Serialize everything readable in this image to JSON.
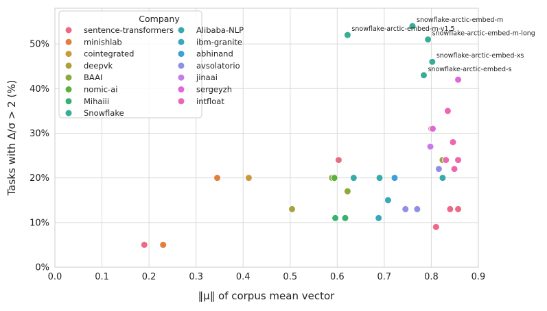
{
  "chart_data": {
    "type": "scatter",
    "title": "",
    "xlabel": "‖μ‖ of corpus mean vector",
    "ylabel": "Tasks with Δ/σ > 2 (%)",
    "xlim": [
      0.0,
      0.9
    ],
    "ylim": [
      0,
      58
    ],
    "xticks": [
      0.0,
      0.1,
      0.2,
      0.3,
      0.4,
      0.5,
      0.6,
      0.7,
      0.8,
      0.9
    ],
    "xtick_labels": [
      "0.0",
      "0.1",
      "0.2",
      "0.3",
      "0.4",
      "0.5",
      "0.6",
      "0.7",
      "0.8",
      "0.9"
    ],
    "yticks": [
      0,
      10,
      20,
      30,
      40,
      50
    ],
    "ytick_labels": [
      "0%",
      "10%",
      "20%",
      "30%",
      "40%",
      "50%"
    ],
    "grid": true,
    "legend": {
      "title": "Company",
      "placement": "top-left",
      "columns": 2
    },
    "series": [
      {
        "name": "sentence-transformers",
        "color": "#ec6a86",
        "points": [
          [
            0.19,
            5
          ],
          [
            0.603,
            24
          ],
          [
            0.84,
            13
          ],
          [
            0.857,
            13
          ],
          [
            0.81,
            9
          ]
        ]
      },
      {
        "name": "minishlab",
        "color": "#e67e3b",
        "points": [
          [
            0.23,
            5
          ],
          [
            0.345,
            20
          ]
        ]
      },
      {
        "name": "cointegrated",
        "color": "#c99a3c",
        "points": [
          [
            0.412,
            20
          ],
          [
            0.8,
            31
          ]
        ]
      },
      {
        "name": "deepvk",
        "color": "#a9a23a",
        "points": [
          [
            0.504,
            13
          ]
        ]
      },
      {
        "name": "BAAI",
        "color": "#8fa83a",
        "points": [
          [
            0.589,
            20
          ],
          [
            0.622,
            17
          ],
          [
            0.824,
            24
          ]
        ]
      },
      {
        "name": "nomic-ai",
        "color": "#5bb13a",
        "points": [
          [
            0.594,
            20
          ]
        ]
      },
      {
        "name": "Mihaiii",
        "color": "#38b270",
        "points": [
          [
            0.596,
            11
          ],
          [
            0.617,
            11
          ]
        ]
      },
      {
        "name": "Snowflake",
        "color": "#36ae96",
        "points": [
          [
            0.622,
            52
          ],
          [
            0.76,
            54
          ],
          [
            0.793,
            51
          ],
          [
            0.802,
            46
          ],
          [
            0.784,
            43
          ]
        ]
      },
      {
        "name": "Alibaba-NLP",
        "color": "#37aaaa",
        "points": [
          [
            0.635,
            20
          ],
          [
            0.69,
            20
          ],
          [
            0.824,
            20
          ]
        ]
      },
      {
        "name": "ibm-granite",
        "color": "#39a8be",
        "points": [
          [
            0.688,
            11
          ],
          [
            0.708,
            15
          ]
        ]
      },
      {
        "name": "abhinand",
        "color": "#3ba1d8",
        "points": [
          [
            0.722,
            20
          ]
        ]
      },
      {
        "name": "avsolatorio",
        "color": "#8f8fe6",
        "points": [
          [
            0.745,
            13
          ],
          [
            0.77,
            13
          ],
          [
            0.816,
            22
          ]
        ]
      },
      {
        "name": "jinaai",
        "color": "#c57ce8",
        "points": [
          [
            0.798,
            27
          ]
        ]
      },
      {
        "name": "sergeyzh",
        "color": "#e066d9",
        "points": [
          [
            0.803,
            31
          ],
          [
            0.857,
            42
          ]
        ]
      },
      {
        "name": "intfloat",
        "color": "#ee66b0",
        "points": [
          [
            0.835,
            35
          ],
          [
            0.846,
            28
          ],
          [
            0.831,
            24
          ],
          [
            0.857,
            24
          ],
          [
            0.849,
            22
          ]
        ]
      }
    ],
    "annotations": [
      {
        "text": "snowflake-arctic-embed-m",
        "x": 0.76,
        "y": 54
      },
      {
        "text": "snowflake-arctic-embed-m-v1.5",
        "x": 0.622,
        "y": 52
      },
      {
        "text": "snowflake-arctic-embed-m-long",
        "x": 0.793,
        "y": 51
      },
      {
        "text": "snowflake-arctic-embed-xs",
        "x": 0.802,
        "y": 46
      },
      {
        "text": "snowflake-arctic-embed-s",
        "x": 0.784,
        "y": 43
      }
    ]
  }
}
